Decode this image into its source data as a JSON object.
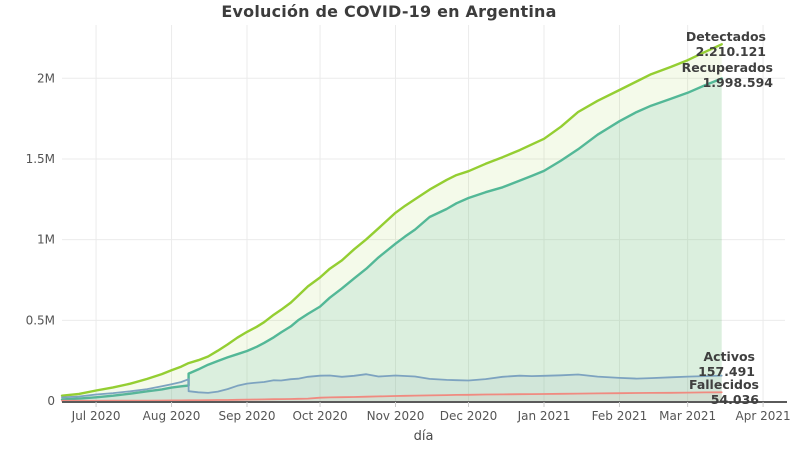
{
  "chart_data": {
    "type": "area",
    "title": "Evolución de COVID-19 en Argentina",
    "xlabel": "día",
    "x_unit": "days since 2020-06-17",
    "x_range": [
      0,
      297
    ],
    "y_range": [
      0,
      2330000
    ],
    "grid": true,
    "legend_position": "end-of-line annotations",
    "x_ticks": [
      {
        "label": "Jul 2020",
        "day": 14
      },
      {
        "label": "Aug 2020",
        "day": 45
      },
      {
        "label": "Sep 2020",
        "day": 76
      },
      {
        "label": "Oct 2020",
        "day": 106
      },
      {
        "label": "Nov 2020",
        "day": 137
      },
      {
        "label": "Dec 2020",
        "day": 167
      },
      {
        "label": "Jan 2021",
        "day": 198
      },
      {
        "label": "Feb 2021",
        "day": 229
      },
      {
        "label": "Mar 2021",
        "day": 257
      },
      {
        "label": "Apr 2021",
        "day": 288
      }
    ],
    "y_ticks": [
      {
        "label": "0",
        "value": 0
      },
      {
        "label": "0.5M",
        "value": 500000
      },
      {
        "label": "1M",
        "value": 1000000
      },
      {
        "label": "1.5M",
        "value": 1500000
      },
      {
        "label": "2M",
        "value": 2000000
      }
    ],
    "series": [
      {
        "name": "Detectados",
        "final_value": 2210121,
        "color": "#94ce32",
        "fill": "rgba(148,206,50,0.10)",
        "line_width": 2.4,
        "points": [
          [
            0,
            33000
          ],
          [
            7,
            44000
          ],
          [
            14,
            65000
          ],
          [
            21,
            84000
          ],
          [
            28,
            107000
          ],
          [
            35,
            137000
          ],
          [
            41,
            167000
          ],
          [
            45,
            191000
          ],
          [
            49,
            213000
          ],
          [
            52,
            235000
          ],
          [
            56,
            253000
          ],
          [
            60,
            276000
          ],
          [
            64,
            312000
          ],
          [
            68,
            350000
          ],
          [
            72,
            392000
          ],
          [
            76,
            428000
          ],
          [
            80,
            460000
          ],
          [
            83,
            488000
          ],
          [
            87,
            535000
          ],
          [
            90,
            565000
          ],
          [
            94,
            610000
          ],
          [
            97,
            652000
          ],
          [
            101,
            710000
          ],
          [
            106,
            765000
          ],
          [
            110,
            820000
          ],
          [
            115,
            871000
          ],
          [
            120,
            940000
          ],
          [
            125,
            1002000
          ],
          [
            130,
            1070000
          ],
          [
            137,
            1166000
          ],
          [
            141,
            1210000
          ],
          [
            145,
            1250000
          ],
          [
            151,
            1310000
          ],
          [
            158,
            1370000
          ],
          [
            162,
            1400000
          ],
          [
            167,
            1424000
          ],
          [
            174,
            1470000
          ],
          [
            181,
            1511000
          ],
          [
            188,
            1555000
          ],
          [
            193,
            1590000
          ],
          [
            198,
            1625000
          ],
          [
            205,
            1700000
          ],
          [
            212,
            1791000
          ],
          [
            220,
            1860000
          ],
          [
            229,
            1927000
          ],
          [
            236,
            1980000
          ],
          [
            242,
            2025000
          ],
          [
            250,
            2070000
          ],
          [
            257,
            2112000
          ],
          [
            264,
            2162000
          ],
          [
            271,
            2210121
          ]
        ]
      },
      {
        "name": "Recuperados",
        "final_value": 1998594,
        "color": "#53b897",
        "fill": "rgba(83,184,151,0.15)",
        "line_width": 2.4,
        "points": [
          [
            0,
            10000
          ],
          [
            7,
            15000
          ],
          [
            14,
            23000
          ],
          [
            21,
            33000
          ],
          [
            28,
            45000
          ],
          [
            35,
            60000
          ],
          [
            41,
            72000
          ],
          [
            45,
            83000
          ],
          [
            49,
            91000
          ],
          [
            52,
            96000
          ],
          [
            52,
            170000
          ],
          [
            56,
            196000
          ],
          [
            60,
            225000
          ],
          [
            64,
            248000
          ],
          [
            68,
            270000
          ],
          [
            72,
            290000
          ],
          [
            76,
            310000
          ],
          [
            80,
            336000
          ],
          [
            83,
            360000
          ],
          [
            87,
            395000
          ],
          [
            90,
            425000
          ],
          [
            94,
            462000
          ],
          [
            97,
            500000
          ],
          [
            101,
            540000
          ],
          [
            106,
            585000
          ],
          [
            110,
            640000
          ],
          [
            115,
            698000
          ],
          [
            120,
            760000
          ],
          [
            125,
            820000
          ],
          [
            130,
            890000
          ],
          [
            137,
            975000
          ],
          [
            141,
            1020000
          ],
          [
            145,
            1062000
          ],
          [
            151,
            1140000
          ],
          [
            158,
            1190000
          ],
          [
            162,
            1225000
          ],
          [
            167,
            1258000
          ],
          [
            174,
            1294000
          ],
          [
            181,
            1324000
          ],
          [
            188,
            1366000
          ],
          [
            193,
            1395000
          ],
          [
            198,
            1426000
          ],
          [
            205,
            1490000
          ],
          [
            212,
            1560000
          ],
          [
            220,
            1650000
          ],
          [
            229,
            1734000
          ],
          [
            236,
            1790000
          ],
          [
            242,
            1830000
          ],
          [
            250,
            1872000
          ],
          [
            257,
            1910000
          ],
          [
            264,
            1956000
          ],
          [
            271,
            1998594
          ]
        ]
      },
      {
        "name": "Activos",
        "final_value": 157491,
        "color": "#7da3c0",
        "fill": "rgba(125,155,181,0.10)",
        "line_width": 1.8,
        "points": [
          [
            0,
            22000
          ],
          [
            7,
            28000
          ],
          [
            14,
            40000
          ],
          [
            21,
            49000
          ],
          [
            28,
            60000
          ],
          [
            35,
            74000
          ],
          [
            41,
            92000
          ],
          [
            45,
            104000
          ],
          [
            49,
            118000
          ],
          [
            52,
            135000
          ],
          [
            52,
            61000
          ],
          [
            56,
            54000
          ],
          [
            60,
            50000
          ],
          [
            64,
            58000
          ],
          [
            68,
            74000
          ],
          [
            72,
            94000
          ],
          [
            76,
            108000
          ],
          [
            80,
            114000
          ],
          [
            83,
            118000
          ],
          [
            87,
            128000
          ],
          [
            90,
            127000
          ],
          [
            94,
            135000
          ],
          [
            97,
            138000
          ],
          [
            101,
            150000
          ],
          [
            106,
            157000
          ],
          [
            110,
            158000
          ],
          [
            115,
            150000
          ],
          [
            120,
            156000
          ],
          [
            125,
            166000
          ],
          [
            130,
            152000
          ],
          [
            137,
            158000
          ],
          [
            141,
            155000
          ],
          [
            145,
            152000
          ],
          [
            151,
            137000
          ],
          [
            158,
            131000
          ],
          [
            162,
            129000
          ],
          [
            167,
            127000
          ],
          [
            174,
            136000
          ],
          [
            181,
            150000
          ],
          [
            188,
            157000
          ],
          [
            193,
            154000
          ],
          [
            198,
            156000
          ],
          [
            205,
            159000
          ],
          [
            212,
            164000
          ],
          [
            220,
            151000
          ],
          [
            229,
            143000
          ],
          [
            236,
            139000
          ],
          [
            242,
            142000
          ],
          [
            250,
            147000
          ],
          [
            257,
            151000
          ],
          [
            264,
            154000
          ],
          [
            271,
            157491
          ]
        ]
      },
      {
        "name": "Fallecidos",
        "final_value": 54036,
        "color": "#f08a80",
        "fill": "rgba(240,138,128,0.08)",
        "line_width": 1.8,
        "points": [
          [
            0,
            1000
          ],
          [
            7,
            1150
          ],
          [
            14,
            1300
          ],
          [
            21,
            1600
          ],
          [
            28,
            1900
          ],
          [
            35,
            2500
          ],
          [
            41,
            3050
          ],
          [
            45,
            3500
          ],
          [
            49,
            3900
          ],
          [
            52,
            4200
          ],
          [
            56,
            4600
          ],
          [
            60,
            5500
          ],
          [
            64,
            5900
          ],
          [
            68,
            6500
          ],
          [
            72,
            7600
          ],
          [
            76,
            8900
          ],
          [
            80,
            9600
          ],
          [
            83,
            10100
          ],
          [
            87,
            11200
          ],
          [
            90,
            11800
          ],
          [
            94,
            12600
          ],
          [
            97,
            13500
          ],
          [
            101,
            15000
          ],
          [
            106,
            20600
          ],
          [
            110,
            22000
          ],
          [
            115,
            23500
          ],
          [
            120,
            25000
          ],
          [
            125,
            26800
          ],
          [
            130,
            28500
          ],
          [
            137,
            31000
          ],
          [
            141,
            32200
          ],
          [
            145,
            33500
          ],
          [
            151,
            35000
          ],
          [
            158,
            36800
          ],
          [
            162,
            37800
          ],
          [
            167,
            38700
          ],
          [
            174,
            40000
          ],
          [
            181,
            41200
          ],
          [
            188,
            42300
          ],
          [
            193,
            42800
          ],
          [
            198,
            43250
          ],
          [
            205,
            44500
          ],
          [
            212,
            45800
          ],
          [
            220,
            47000
          ],
          [
            229,
            48500
          ],
          [
            236,
            49400
          ],
          [
            242,
            50200
          ],
          [
            250,
            51000
          ],
          [
            257,
            51900
          ],
          [
            264,
            53000
          ],
          [
            271,
            54036
          ]
        ]
      }
    ]
  },
  "annotations": [
    {
      "label": "Detectados",
      "value": "2.210.121"
    },
    {
      "label": "Recuperados",
      "value": "1.998.594"
    },
    {
      "label": "Activos",
      "value": "157.491"
    },
    {
      "label": "Fallecidos",
      "value": "54.036"
    }
  ],
  "style": {
    "grid_color": "#ebebeb",
    "axis_line_color": "#5a5a5a",
    "tick_mark_color": "#cccccc",
    "title_color": "#3c3c3c",
    "tick_label_color": "#555555"
  }
}
